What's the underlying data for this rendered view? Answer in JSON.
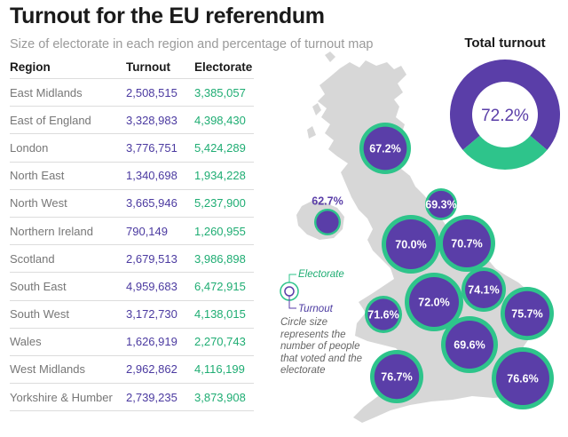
{
  "title": "Turnout for the EU referendum",
  "subtitle": "Size of electorate in each region and percentage of turnout map",
  "table": {
    "headers": [
      "Region",
      "Turnout",
      "Electorate"
    ],
    "rows": [
      {
        "region": "East Midlands",
        "turnout": "2,508,515",
        "electorate": "3,385,057"
      },
      {
        "region": "East of England",
        "turnout": "3,328,983",
        "electorate": "4,398,430"
      },
      {
        "region": "London",
        "turnout": "3,776,751",
        "electorate": "5,424,289"
      },
      {
        "region": "North East",
        "turnout": "1,340,698",
        "electorate": "1,934,228"
      },
      {
        "region": "North West",
        "turnout": "3,665,946",
        "electorate": "5,237,900"
      },
      {
        "region": "Northern Ireland",
        "turnout": "790,149",
        "electorate": "1,260,955"
      },
      {
        "region": "Scotland",
        "turnout": "2,679,513",
        "electorate": "3,986,898"
      },
      {
        "region": "South East",
        "turnout": "4,959,683",
        "electorate": "6,472,915"
      },
      {
        "region": "South West",
        "turnout": "3,172,730",
        "electorate": "4,138,015"
      },
      {
        "region": "Wales",
        "turnout": "1,626,919",
        "electorate": "2,270,743"
      },
      {
        "region": "West Midlands",
        "turnout": "2,962,862",
        "electorate": "4,116,199"
      },
      {
        "region": "Yorkshire & Humber",
        "turnout": "2,739,235",
        "electorate": "3,873,908"
      }
    ]
  },
  "donut": {
    "title": "Total turnout",
    "value": 72.2,
    "label": "72.2%"
  },
  "legend": {
    "electorate": "Electorate",
    "turnout": "Turnout",
    "note": "Circle size represents the number of people that voted and the electorate"
  },
  "colors": {
    "turnout": "#5a3ea8",
    "electorate": "#2ec48b",
    "land": "#d7d7d7",
    "text_region": "#777777"
  },
  "chart_data": {
    "type": "table",
    "title": "Turnout for the EU referendum",
    "categories": [
      "East Midlands",
      "East of England",
      "London",
      "North East",
      "North West",
      "Northern Ireland",
      "Scotland",
      "South East",
      "South West",
      "Wales",
      "West Midlands",
      "Yorkshire & Humber"
    ],
    "series": [
      {
        "name": "Turnout",
        "values": [
          2508515,
          3328983,
          3776751,
          1340698,
          3665946,
          790149,
          2679513,
          4959683,
          3172730,
          1626919,
          2962862,
          2739235
        ]
      },
      {
        "name": "Electorate",
        "values": [
          3385057,
          4398430,
          5424289,
          1934228,
          5237900,
          1260955,
          3986898,
          6472915,
          4138015,
          2270743,
          4116199,
          3873908
        ]
      }
    ],
    "map_bubbles": [
      {
        "label": "67.2%"
      },
      {
        "label": "62.7%"
      },
      {
        "label": "69.3%"
      },
      {
        "label": "70.0%"
      },
      {
        "label": "70.7%"
      },
      {
        "label": "72.0%"
      },
      {
        "label": "74.1%"
      },
      {
        "label": "71.6%"
      },
      {
        "label": "75.7%"
      },
      {
        "label": "69.6%"
      },
      {
        "label": "76.7%"
      },
      {
        "label": "76.6%"
      }
    ],
    "total_turnout": 72.2
  }
}
